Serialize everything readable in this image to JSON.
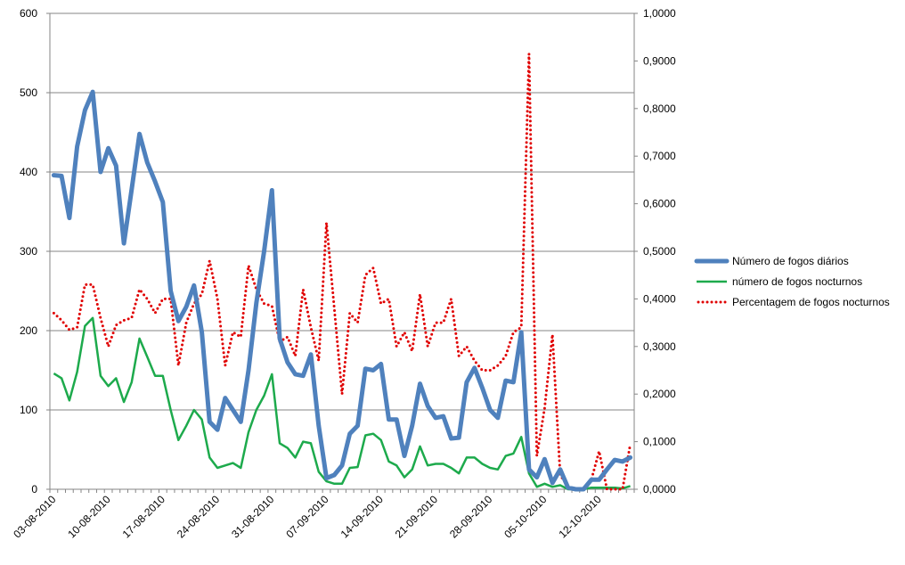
{
  "chart_data": {
    "type": "line",
    "title": "",
    "xlabel": "",
    "ylabel": "",
    "y_left": {
      "range": [
        0,
        600
      ],
      "ticks": [
        "0",
        "100",
        "200",
        "300",
        "400",
        "500",
        "600"
      ]
    },
    "y_right": {
      "range": [
        0,
        1
      ],
      "ticks": [
        "0,0000",
        "0,1000",
        "0,2000",
        "0,3000",
        "0,4000",
        "0,5000",
        "0,6000",
        "0,7000",
        "0,8000",
        "0,9000",
        "1,0000"
      ]
    },
    "x_tick_labels": [
      "03-08-2010",
      "10-08-2010",
      "17-08-2010",
      "24-08-2010",
      "31-08-2010",
      "07-09-2010",
      "14-09-2010",
      "21-09-2010",
      "28-09-2010",
      "05-10-2010",
      "12-10-2010"
    ],
    "x_start_date": "03-08-2010",
    "x_end_date": "18-10-2010",
    "grid": "horizontal",
    "legend_position": "right",
    "series": [
      {
        "name": "Número de fogos diários",
        "axis": "left",
        "color": "#4F81BD",
        "style": "solid",
        "values": [
          396,
          395,
          342,
          432,
          478,
          501,
          400,
          430,
          408,
          310,
          378,
          448,
          412,
          388,
          362,
          250,
          212,
          230,
          257,
          198,
          85,
          75,
          115,
          100,
          85,
          150,
          235,
          300,
          377,
          190,
          160,
          145,
          143,
          170,
          80,
          14,
          18,
          30,
          70,
          80,
          152,
          150,
          158,
          88,
          88,
          42,
          80,
          133,
          105,
          90,
          92,
          64,
          65,
          135,
          153,
          128,
          100,
          90,
          137,
          135,
          198,
          25,
          15,
          38,
          8,
          25,
          2,
          0,
          0,
          12,
          12,
          25,
          37,
          35,
          40
        ]
      },
      {
        "name": "número de fogos nocturnos",
        "axis": "left",
        "color": "#1DAA4C",
        "style": "solid",
        "values": [
          146,
          140,
          112,
          148,
          206,
          216,
          143,
          130,
          140,
          110,
          135,
          190,
          167,
          143,
          143,
          100,
          62,
          80,
          100,
          88,
          40,
          27,
          30,
          33,
          27,
          72,
          100,
          118,
          145,
          58,
          52,
          40,
          60,
          58,
          22,
          10,
          7,
          7,
          27,
          28,
          68,
          70,
          62,
          35,
          30,
          15,
          25,
          54,
          30,
          32,
          32,
          27,
          20,
          40,
          40,
          32,
          27,
          25,
          42,
          45,
          66,
          20,
          3,
          7,
          3,
          5,
          0,
          0,
          0,
          2,
          2,
          2,
          2,
          1,
          4
        ]
      },
      {
        "name": "Percentagem de fogos nocturnos",
        "axis": "right",
        "color": "#E00000",
        "style": "dotted",
        "values": [
          0.37,
          0.355,
          0.335,
          0.34,
          0.43,
          0.43,
          0.36,
          0.3,
          0.345,
          0.355,
          0.36,
          0.42,
          0.4,
          0.37,
          0.4,
          0.4,
          0.26,
          0.35,
          0.39,
          0.41,
          0.48,
          0.4,
          0.26,
          0.33,
          0.32,
          0.47,
          0.42,
          0.39,
          0.385,
          0.31,
          0.32,
          0.28,
          0.42,
          0.34,
          0.27,
          0.56,
          0.38,
          0.2,
          0.37,
          0.35,
          0.45,
          0.465,
          0.39,
          0.4,
          0.3,
          0.33,
          0.29,
          0.41,
          0.3,
          0.35,
          0.35,
          0.4,
          0.28,
          0.3,
          0.27,
          0.25,
          0.25,
          0.26,
          0.28,
          0.33,
          0.34,
          0.915,
          0.07,
          0.17,
          0.325,
          0.03,
          0.005,
          0.0,
          0.0,
          0.02,
          0.08,
          0.0,
          0.0,
          0.0,
          0.095
        ]
      }
    ]
  }
}
